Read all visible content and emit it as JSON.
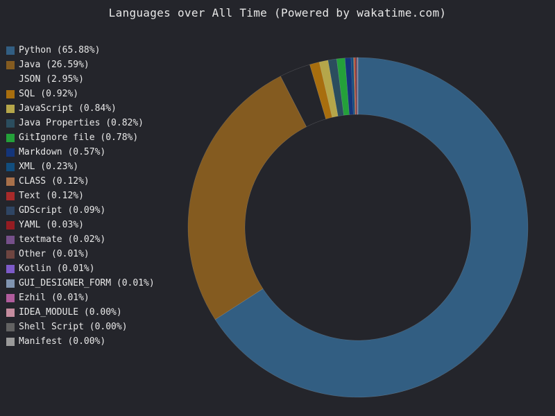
{
  "chart_data": {
    "type": "pie",
    "variant": "donut",
    "title": "Languages over All Time (Powered by wakatime.com)",
    "legend_position": "left",
    "slices": [
      {
        "label": "Python (65.88%)",
        "name": "Python",
        "value": 65.88,
        "color": "#325e82"
      },
      {
        "label": "Java (26.59%)",
        "name": "Java",
        "value": 26.59,
        "color": "#845b20"
      },
      {
        "label": "JSON (2.95%)",
        "name": "JSON",
        "value": 2.95,
        "color": "#24252b"
      },
      {
        "label": "SQL (0.92%)",
        "name": "SQL",
        "value": 0.92,
        "color": "#a86e0e"
      },
      {
        "label": "JavaScript (0.84%)",
        "name": "JavaScript",
        "value": 0.84,
        "color": "#b5a64a"
      },
      {
        "label": "Java Properties (0.82%)",
        "name": "Java Properties",
        "value": 0.82,
        "color": "#2b4d5e"
      },
      {
        "label": "GitIgnore file (0.78%)",
        "name": "GitIgnore file",
        "value": 0.78,
        "color": "#24a03a"
      },
      {
        "label": "Markdown (0.57%)",
        "name": "Markdown",
        "value": 0.57,
        "color": "#14357a"
      },
      {
        "label": "XML (0.23%)",
        "name": "XML",
        "value": 0.23,
        "color": "#124e7e"
      },
      {
        "label": "CLASS (0.12%)",
        "name": "CLASS",
        "value": 0.12,
        "color": "#a8704a"
      },
      {
        "label": "Text (0.12%)",
        "name": "Text",
        "value": 0.12,
        "color": "#a82a2a"
      },
      {
        "label": "GDScript (0.09%)",
        "name": "GDScript",
        "value": 0.09,
        "color": "#2f4563"
      },
      {
        "label": "YAML (0.03%)",
        "name": "YAML",
        "value": 0.03,
        "color": "#951c22"
      },
      {
        "label": "textmate (0.02%)",
        "name": "textmate",
        "value": 0.02,
        "color": "#76508a"
      },
      {
        "label": "Other (0.01%)",
        "name": "Other",
        "value": 0.01,
        "color": "#6e4540"
      },
      {
        "label": "Kotlin (0.01%)",
        "name": "Kotlin",
        "value": 0.01,
        "color": "#7d5ac8"
      },
      {
        "label": "GUI_DESIGNER_FORM (0.01%)",
        "name": "GUI_DESIGNER_FORM",
        "value": 0.01,
        "color": "#8094b0"
      },
      {
        "label": "Ezhil (0.01%)",
        "name": "Ezhil",
        "value": 0.01,
        "color": "#b05c9c"
      },
      {
        "label": "IDEA_MODULE (0.00%)",
        "name": "IDEA_MODULE",
        "value": 0.0,
        "color": "#c48c9e"
      },
      {
        "label": "Shell Script (0.00%)",
        "name": "Shell Script",
        "value": 0.0,
        "color": "#626262"
      },
      {
        "label": "Manifest (0.00%)",
        "name": "Manifest",
        "value": 0.0,
        "color": "#9a9a9a"
      }
    ]
  }
}
